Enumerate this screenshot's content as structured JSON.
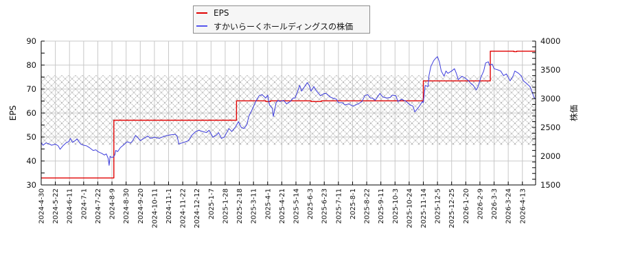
{
  "legend": {
    "items": [
      {
        "label": "EPS",
        "color": "#e00000"
      },
      {
        "label": "すかいらーくホールディングスの株価",
        "color": "#5555ee"
      }
    ]
  },
  "axes": {
    "left_label": "EPS",
    "right_label": "株価"
  },
  "chart_data": {
    "type": "line",
    "title": "",
    "xlabel": "",
    "ylabel": "EPS",
    "ylabel_right": "株価",
    "ylim": [
      30,
      90
    ],
    "ylim_right": [
      1500,
      4000
    ],
    "yticks": [
      30,
      40,
      50,
      60,
      70,
      80,
      90
    ],
    "yticks_right": [
      1500,
      2000,
      2500,
      3000,
      3500,
      4000
    ],
    "y_minor_step": 5,
    "y_minor_step_right": 100,
    "x_unit": "trading_day_index",
    "x_max": 524,
    "x_tick_step": 15,
    "x_tick_labels": [
      "2024-4-30",
      "2024-5-22",
      "2024-6-11",
      "2024-7-1",
      "2024-7-22",
      "2024-8-9",
      "2024-8-30",
      "2024-9-20",
      "2024-10-11",
      "2024-11-1",
      "2024-11-22",
      "2024-12-12",
      "2025-1-7",
      "2025-1-28",
      "2025-2-18",
      "2025-3-11",
      "2025-4-1",
      "2025-4-21",
      "2025-5-14",
      "2025-6-3",
      "2025-6-23",
      "2025-7-11",
      "2025-8-1",
      "2025-8-22",
      "2025-9-11",
      "2025-10-3",
      "2025-10-24",
      "2025-11-14",
      "2025-12-5",
      "2025-12-25",
      "2026-1-20",
      "2026-2-9",
      "2026-3-3",
      "2026-3-24",
      "2026-4-13"
    ],
    "grid": true,
    "legend_position": "top",
    "shaded_band": {
      "axis": "left",
      "range": [
        46.6,
        75.7
      ],
      "pattern": "crosshatch"
    },
    "series": [
      {
        "name": "EPS",
        "axis": "left",
        "color": "#e00000",
        "step": true,
        "points": [
          [
            0,
            32.9
          ],
          [
            77,
            57.0
          ],
          [
            207,
            65.1
          ],
          [
            238,
            64.8
          ],
          [
            243,
            65.1
          ],
          [
            286,
            64.8
          ],
          [
            297,
            65.1
          ],
          [
            405,
            73.4
          ],
          [
            476,
            85.8
          ],
          [
            501,
            85.6
          ],
          [
            504,
            85.8
          ],
          [
            524,
            85.8
          ]
        ]
      },
      {
        "name": "すかいらーくホールディングスの株価",
        "axis": "right",
        "color": "#3c3cdc",
        "step": false,
        "points": [
          [
            0,
            2240
          ],
          [
            2,
            2190
          ],
          [
            5,
            2230
          ],
          [
            9,
            2210
          ],
          [
            11,
            2190
          ],
          [
            15,
            2210
          ],
          [
            18,
            2180
          ],
          [
            20,
            2120
          ],
          [
            23,
            2180
          ],
          [
            27,
            2240
          ],
          [
            29,
            2250
          ],
          [
            31,
            2310
          ],
          [
            33,
            2240
          ],
          [
            36,
            2270
          ],
          [
            38,
            2300
          ],
          [
            40,
            2250
          ],
          [
            42,
            2210
          ],
          [
            45,
            2190
          ],
          [
            48,
            2180
          ],
          [
            51,
            2150
          ],
          [
            55,
            2100
          ],
          [
            58,
            2110
          ],
          [
            60,
            2080
          ],
          [
            64,
            2050
          ],
          [
            67,
            2020
          ],
          [
            69,
            2040
          ],
          [
            71,
            1960
          ],
          [
            72,
            1840
          ],
          [
            73,
            2000
          ],
          [
            74,
            1980
          ],
          [
            76,
            1980
          ],
          [
            78,
            2020
          ],
          [
            79,
            2100
          ],
          [
            81,
            2080
          ],
          [
            84,
            2150
          ],
          [
            87,
            2190
          ],
          [
            91,
            2250
          ],
          [
            95,
            2230
          ],
          [
            97,
            2270
          ],
          [
            100,
            2360
          ],
          [
            102,
            2330
          ],
          [
            105,
            2270
          ],
          [
            109,
            2310
          ],
          [
            113,
            2350
          ],
          [
            116,
            2310
          ],
          [
            120,
            2330
          ],
          [
            125,
            2310
          ],
          [
            131,
            2350
          ],
          [
            137,
            2370
          ],
          [
            142,
            2380
          ],
          [
            144,
            2350
          ],
          [
            146,
            2210
          ],
          [
            149,
            2230
          ],
          [
            153,
            2250
          ],
          [
            156,
            2270
          ],
          [
            160,
            2370
          ],
          [
            164,
            2430
          ],
          [
            167,
            2450
          ],
          [
            171,
            2430
          ],
          [
            175,
            2410
          ],
          [
            178,
            2450
          ],
          [
            180,
            2390
          ],
          [
            182,
            2330
          ],
          [
            186,
            2370
          ],
          [
            188,
            2410
          ],
          [
            191,
            2310
          ],
          [
            194,
            2330
          ],
          [
            199,
            2480
          ],
          [
            202,
            2430
          ],
          [
            206,
            2510
          ],
          [
            209,
            2600
          ],
          [
            212,
            2500
          ],
          [
            215,
            2480
          ],
          [
            218,
            2550
          ],
          [
            220,
            2690
          ],
          [
            223,
            2790
          ],
          [
            228,
            2970
          ],
          [
            231,
            3050
          ],
          [
            234,
            3070
          ],
          [
            238,
            3010
          ],
          [
            240,
            3060
          ],
          [
            242,
            2890
          ],
          [
            245,
            2830
          ],
          [
            246,
            2690
          ],
          [
            249,
            2930
          ],
          [
            251,
            2970
          ],
          [
            253,
            2950
          ],
          [
            257,
            2970
          ],
          [
            260,
            2910
          ],
          [
            264,
            2950
          ],
          [
            267,
            3010
          ],
          [
            269,
            3010
          ],
          [
            271,
            3090
          ],
          [
            274,
            3230
          ],
          [
            276,
            3130
          ],
          [
            280,
            3230
          ],
          [
            282,
            3280
          ],
          [
            284,
            3230
          ],
          [
            286,
            3130
          ],
          [
            289,
            3210
          ],
          [
            291,
            3150
          ],
          [
            293,
            3110
          ],
          [
            296,
            3050
          ],
          [
            300,
            3090
          ],
          [
            302,
            3090
          ],
          [
            306,
            3030
          ],
          [
            309,
            3010
          ],
          [
            313,
            2990
          ],
          [
            315,
            2930
          ],
          [
            319,
            2930
          ],
          [
            322,
            2890
          ],
          [
            326,
            2910
          ],
          [
            330,
            2870
          ],
          [
            332,
            2880
          ],
          [
            336,
            2910
          ],
          [
            340,
            2950
          ],
          [
            343,
            3050
          ],
          [
            346,
            3070
          ],
          [
            349,
            3010
          ],
          [
            351,
            3010
          ],
          [
            354,
            2970
          ],
          [
            359,
            3090
          ],
          [
            362,
            3030
          ],
          [
            366,
            3010
          ],
          [
            370,
            3020
          ],
          [
            372,
            3060
          ],
          [
            376,
            3050
          ],
          [
            378,
            2950
          ],
          [
            382,
            2990
          ],
          [
            387,
            2950
          ],
          [
            391,
            2890
          ],
          [
            394,
            2870
          ],
          [
            396,
            2770
          ],
          [
            400,
            2850
          ],
          [
            404,
            2950
          ],
          [
            405,
            2930
          ],
          [
            407,
            3230
          ],
          [
            410,
            3210
          ],
          [
            411,
            3400
          ],
          [
            413,
            3560
          ],
          [
            416,
            3660
          ],
          [
            418,
            3700
          ],
          [
            420,
            3730
          ],
          [
            422,
            3640
          ],
          [
            424,
            3480
          ],
          [
            427,
            3390
          ],
          [
            429,
            3480
          ],
          [
            431,
            3440
          ],
          [
            435,
            3480
          ],
          [
            438,
            3520
          ],
          [
            440,
            3440
          ],
          [
            442,
            3330
          ],
          [
            446,
            3390
          ],
          [
            450,
            3350
          ],
          [
            453,
            3310
          ],
          [
            455,
            3270
          ],
          [
            458,
            3230
          ],
          [
            461,
            3150
          ],
          [
            463,
            3210
          ],
          [
            466,
            3370
          ],
          [
            469,
            3480
          ],
          [
            471,
            3620
          ],
          [
            474,
            3640
          ],
          [
            475,
            3580
          ],
          [
            478,
            3600
          ],
          [
            480,
            3520
          ],
          [
            484,
            3500
          ],
          [
            487,
            3480
          ],
          [
            490,
            3400
          ],
          [
            493,
            3430
          ],
          [
            497,
            3310
          ],
          [
            500,
            3390
          ],
          [
            502,
            3480
          ],
          [
            506,
            3440
          ],
          [
            509,
            3390
          ],
          [
            511,
            3310
          ],
          [
            514,
            3270
          ],
          [
            518,
            3210
          ],
          [
            520,
            3130
          ],
          [
            522,
            3030
          ],
          [
            524,
            2990
          ]
        ]
      }
    ]
  }
}
